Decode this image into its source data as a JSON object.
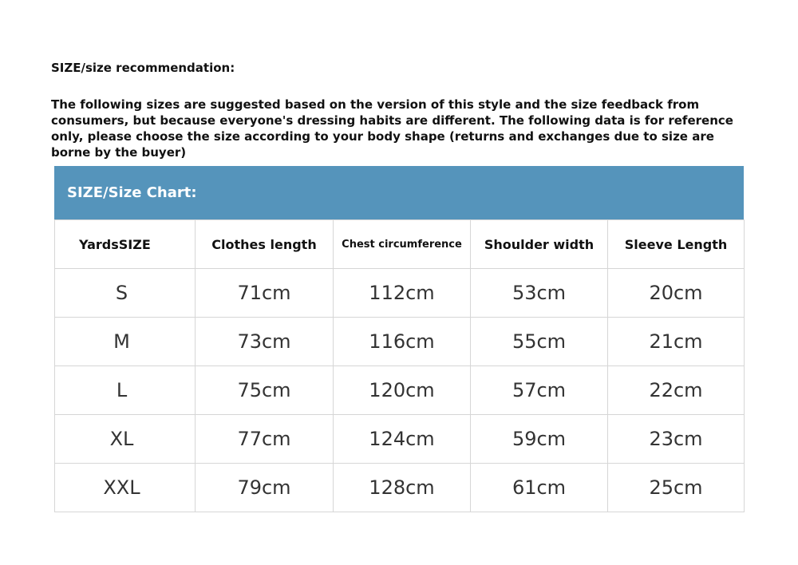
{
  "intro": {
    "title": "SIZE/size recommendation:",
    "body": "The following sizes are suggested based on the version of this style and the size feedback from consumers, but because everyone's dressing habits are different. The following data is for reference only, please choose the size according to your body shape (returns and exchanges due to size are borne by the buyer)"
  },
  "chart": {
    "title": "SIZE/Size Chart:",
    "header_color": "#5594bb",
    "columns": [
      "YardsSIZE",
      "Clothes length",
      "Chest circumference",
      "Shoulder width",
      "Sleeve Length"
    ],
    "rows": [
      [
        "S",
        "71cm",
        "112cm",
        "53cm",
        "20cm"
      ],
      [
        "M",
        "73cm",
        "116cm",
        "55cm",
        "21cm"
      ],
      [
        "L",
        "75cm",
        "120cm",
        "57cm",
        "22cm"
      ],
      [
        "XL",
        "77cm",
        "124cm",
        "59cm",
        "23cm"
      ],
      [
        "XXL",
        "79cm",
        "128cm",
        "61cm",
        "25cm"
      ]
    ]
  }
}
